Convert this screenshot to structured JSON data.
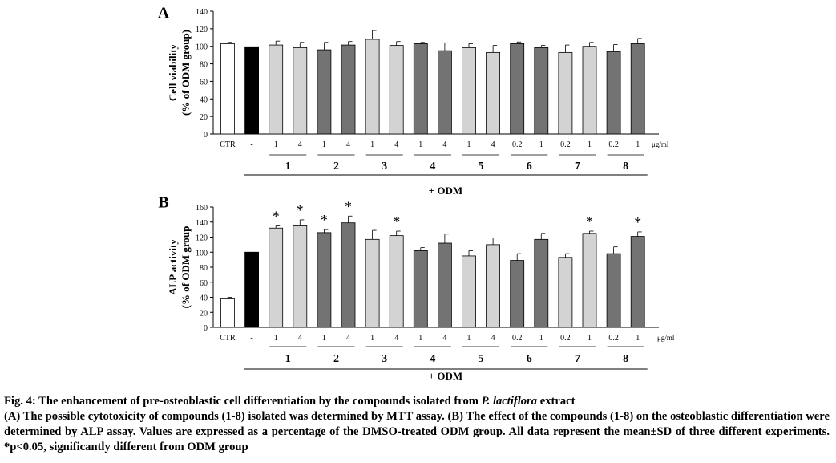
{
  "chart_data": [
    {
      "type": "bar",
      "panel": "A",
      "ylabel_line1": "Cell viability",
      "ylabel_line2": "(% of ODM group)",
      "ylim": [
        0,
        140
      ],
      "yticks": [
        "0",
        "20",
        "40",
        "60",
        "80",
        "100",
        "120",
        "140"
      ],
      "categories": [
        "CTR",
        "-",
        "1",
        "4",
        "1",
        "4",
        "1",
        "4",
        "1",
        "4",
        "1",
        "4",
        "0.2",
        "1",
        "0.2",
        "1",
        "0.2",
        "1"
      ],
      "unit_label": "μg/ml",
      "values": [
        103,
        99.5,
        101.5,
        98.5,
        96,
        101.5,
        108,
        101,
        103,
        95,
        98.5,
        93,
        103,
        98.5,
        93,
        100,
        94,
        103
      ],
      "errors": [
        1.5,
        0,
        4.5,
        6,
        8.5,
        4,
        10,
        4.5,
        1.5,
        9,
        4.5,
        8,
        2,
        2.5,
        8.5,
        4.5,
        8,
        6
      ],
      "colors": [
        "#ffffff",
        "#000000",
        "#d3d3d3",
        "#d3d3d3",
        "#737373",
        "#737373",
        "#d3d3d3",
        "#d3d3d3",
        "#737373",
        "#737373",
        "#d3d3d3",
        "#d3d3d3",
        "#737373",
        "#737373",
        "#d3d3d3",
        "#d3d3d3",
        "#737373",
        "#737373"
      ],
      "stars": [],
      "star_symbol": "*",
      "groups": [
        "1",
        "2",
        "3",
        "4",
        "5",
        "6",
        "7",
        "8"
      ],
      "group_caption": "+ ODM",
      "grid": false
    },
    {
      "type": "bar",
      "panel": "B",
      "ylabel_line1": "ALP activity",
      "ylabel_line2": "(% of ODM group",
      "ylim": [
        0,
        160
      ],
      "yticks": [
        "0",
        "20",
        "40",
        "60",
        "80",
        "100",
        "120",
        "140",
        "160"
      ],
      "categories": [
        "CTR",
        "-",
        "1",
        "4",
        "1",
        "4",
        "1",
        "4",
        "1",
        "4",
        "1",
        "4",
        "0.2",
        "1",
        "0.2",
        "1",
        "0.2",
        "1"
      ],
      "unit_label": "μg/ml",
      "values": [
        39,
        100,
        132,
        135,
        126,
        139,
        117,
        122,
        102,
        112,
        95,
        110,
        89,
        117,
        93,
        125,
        98,
        121
      ],
      "errors": [
        1,
        0,
        3,
        8,
        4,
        9,
        12,
        6,
        4,
        12,
        7,
        9,
        9,
        8,
        5,
        3,
        9,
        6
      ],
      "colors": [
        "#ffffff",
        "#000000",
        "#d3d3d3",
        "#d3d3d3",
        "#737373",
        "#737373",
        "#d3d3d3",
        "#d3d3d3",
        "#737373",
        "#737373",
        "#d3d3d3",
        "#d3d3d3",
        "#737373",
        "#737373",
        "#d3d3d3",
        "#d3d3d3",
        "#737373",
        "#737373"
      ],
      "stars": [
        2,
        3,
        4,
        5,
        7,
        15,
        17
      ],
      "star_symbol": "*",
      "groups": [
        "1",
        "2",
        "3",
        "4",
        "5",
        "6",
        "7",
        "8"
      ],
      "group_caption": "+ ODM",
      "grid": false
    }
  ],
  "caption": {
    "title_prefix": "Fig. 4: The enhancement of pre-osteoblastic cell differentiation by the compounds isolated from ",
    "title_species": "P. lactiflora",
    "title_suffix": " extract",
    "body": "(A) The possible cytotoxicity of compounds (1-8) isolated was determined by MTT assay. (B) The effect of the compounds (1-8) on the osteoblastic differentiation were determined by ALP assay. Values are expressed as a percentage of the DMSO-treated ODM group. All data represent the mean±SD of three different experiments. *p<0.05, significantly different from ODM group"
  }
}
